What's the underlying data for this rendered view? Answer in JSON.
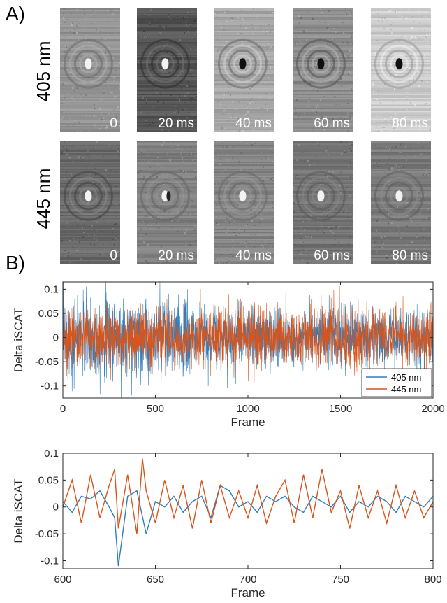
{
  "panel_a": {
    "letter": "A)",
    "rows": [
      {
        "wavelength_label": "405 nm",
        "frames": [
          {
            "time": "0",
            "brightness": 0.58,
            "center": "bright",
            "contrast": 0.35
          },
          {
            "time": "20 ms",
            "brightness": 0.34,
            "center": "bright",
            "contrast": 0.35
          },
          {
            "time": "40 ms",
            "brightness": 0.66,
            "center": "dark",
            "contrast": 0.55
          },
          {
            "time": "60 ms",
            "brightness": 0.55,
            "center": "dark",
            "contrast": 0.5
          },
          {
            "time": "80 ms",
            "brightness": 0.8,
            "center": "dark",
            "contrast": 0.45
          }
        ]
      },
      {
        "wavelength_label": "445 nm",
        "frames": [
          {
            "time": "0",
            "brightness": 0.42,
            "center": "bright",
            "contrast": 0.35
          },
          {
            "time": "20 ms",
            "brightness": 0.5,
            "center": "mixed",
            "contrast": 0.25
          },
          {
            "time": "40 ms",
            "brightness": 0.52,
            "center": "bright",
            "contrast": 0.25
          },
          {
            "time": "60 ms",
            "brightness": 0.46,
            "center": "bright",
            "contrast": 0.25
          },
          {
            "time": "80 ms",
            "brightness": 0.48,
            "center": "bright",
            "contrast": 0.25
          }
        ]
      }
    ]
  },
  "panel_b": {
    "letter": "B)"
  },
  "chart_data": [
    {
      "type": "line",
      "xlabel": "Frame",
      "ylabel": "Delta iSCAT",
      "xlim": [
        0,
        2000
      ],
      "ylim": [
        -0.125,
        0.115
      ],
      "xticks": [
        0,
        500,
        1000,
        1500,
        2000
      ],
      "xtick_labels": [
        "0",
        "500",
        "1000",
        "1500",
        "2000"
      ],
      "yticks": [
        -0.1,
        -0.05,
        0,
        0.05,
        0.1
      ],
      "ytick_labels": [
        "-0.1",
        "-0.05",
        "0",
        "0.05",
        "0.1"
      ],
      "legend_position": "bottom-right",
      "series": [
        {
          "name": "405 nm",
          "color": "#2e7ebf",
          "noise_amplitude": 0.03,
          "sample_count": 2000
        },
        {
          "name": "445 nm",
          "color": "#d9541a",
          "noise_amplitude": 0.03,
          "sample_count": 2000
        }
      ]
    },
    {
      "type": "line",
      "xlabel": "Frame",
      "ylabel": "Delta iSCAT",
      "xlim": [
        600,
        800
      ],
      "ylim": [
        -0.115,
        0.1
      ],
      "xticks": [
        600,
        650,
        700,
        750,
        800
      ],
      "xtick_labels": [
        "600",
        "650",
        "700",
        "750",
        "800"
      ],
      "yticks": [
        -0.1,
        -0.05,
        0,
        0.05,
        0.1
      ],
      "ytick_labels": [
        "-0.1",
        "-0.05",
        "0",
        "0.05",
        "0.1"
      ],
      "series": [
        {
          "name": "405 nm",
          "color": "#2e7ebf",
          "x": [
            600,
            605,
            610,
            615,
            620,
            625,
            628,
            630,
            635,
            640,
            645,
            650,
            655,
            660,
            665,
            670,
            675,
            680,
            685,
            690,
            695,
            700,
            705,
            710,
            715,
            720,
            725,
            730,
            735,
            740,
            745,
            750,
            755,
            760,
            765,
            770,
            775,
            780,
            785,
            790,
            795,
            800
          ],
          "y": [
            0.01,
            -0.01,
            0.02,
            0.015,
            0.03,
            0.0,
            -0.02,
            -0.11,
            0.02,
            0.03,
            -0.05,
            0.01,
            0.0,
            0.02,
            -0.01,
            0.01,
            0.02,
            -0.02,
            0.04,
            0.03,
            0.0,
            0.01,
            -0.01,
            0.02,
            0.01,
            0.02,
            0.0,
            -0.01,
            0.02,
            0.01,
            0.0,
            0.02,
            -0.01,
            0.01,
            0.0,
            0.02,
            0.01,
            -0.01,
            0.02,
            0.01,
            0.0,
            0.02
          ]
        },
        {
          "name": "445 nm",
          "color": "#d9541a",
          "x": [
            600,
            605,
            610,
            615,
            620,
            625,
            628,
            630,
            635,
            640,
            643,
            645,
            650,
            655,
            660,
            665,
            670,
            675,
            680,
            685,
            690,
            695,
            700,
            705,
            710,
            715,
            720,
            725,
            730,
            735,
            740,
            745,
            750,
            755,
            760,
            765,
            770,
            775,
            780,
            785,
            790,
            795,
            800
          ],
          "y": [
            0.0,
            0.05,
            -0.03,
            0.06,
            -0.02,
            0.04,
            0.07,
            -0.04,
            0.06,
            -0.05,
            0.09,
            0.03,
            -0.03,
            0.05,
            -0.02,
            0.04,
            -0.04,
            0.05,
            -0.03,
            0.04,
            -0.02,
            0.03,
            -0.02,
            0.04,
            -0.03,
            0.02,
            0.05,
            -0.03,
            0.06,
            -0.02,
            0.07,
            -0.01,
            0.03,
            -0.04,
            0.04,
            -0.02,
            0.03,
            -0.03,
            0.04,
            -0.02,
            0.03,
            -0.02,
            0.01
          ]
        }
      ]
    }
  ]
}
